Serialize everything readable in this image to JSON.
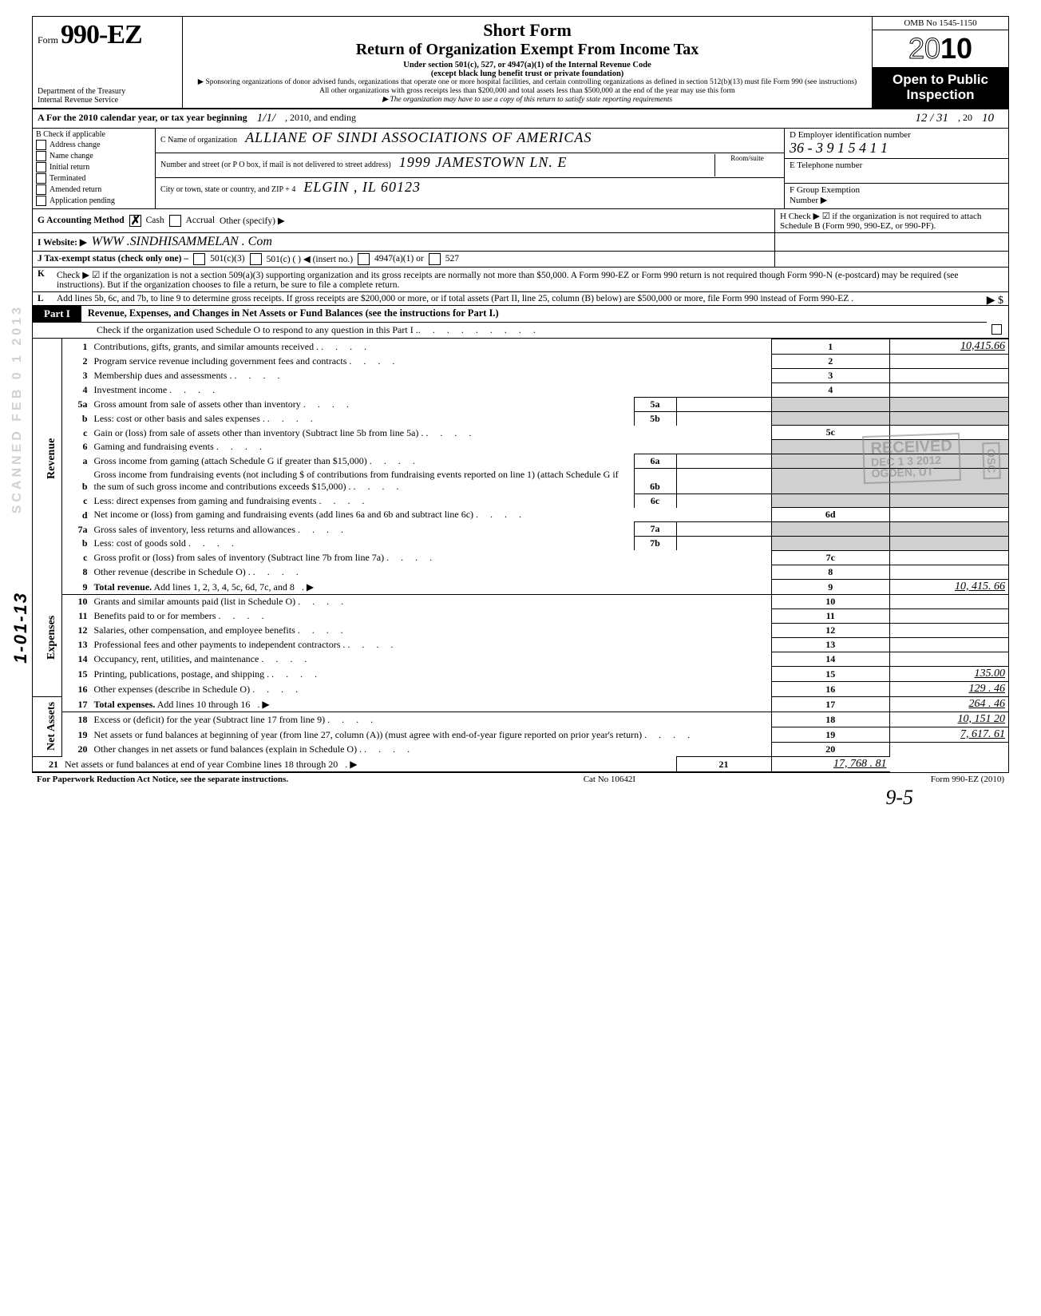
{
  "header": {
    "form_label": "Form",
    "form_number": "990-EZ",
    "dept1": "Department of the Treasury",
    "dept2": "Internal Revenue Service",
    "title1": "Short Form",
    "title2": "Return of Organization Exempt From Income Tax",
    "sub1": "Under section 501(c), 527, or 4947(a)(1) of the Internal Revenue Code",
    "sub2": "(except black lung benefit trust or private foundation)",
    "fine1": "▶ Sponsoring organizations of donor advised funds, organizations that operate one or more hospital facilities, and certain controlling organizations as defined in section 512(b)(13) must file Form 990 (see instructions)",
    "fine2": "All other organizations with gross receipts less than $200,000 and total assets less than $500,000 at the end of the year may use this form",
    "fine3": "▶ The organization may have to use a copy of this return to satisfy state reporting requirements",
    "omb": "OMB No 1545-1150",
    "year_outline": "20",
    "year_bold": "10",
    "open": "Open to Public Inspection"
  },
  "rowA": {
    "prefix": "A  For the 2010 calendar year, or tax year beginning",
    "begin": "1/1/",
    "mid": ", 2010, and ending",
    "end": "12 / 31",
    "suffix": ", 20",
    "yy": "10"
  },
  "colB": {
    "title": "B  Check if applicable",
    "items": [
      "Address change",
      "Name change",
      "Initial return",
      "Terminated",
      "Amended return",
      "Application pending"
    ]
  },
  "colC": {
    "name_lbl": "C  Name of organization",
    "name_val": "ALLIANE OF SINDI ASSOCIATIONS OF AMERICAS",
    "street_lbl": "Number and street (or P O  box, if mail is not delivered to street address)",
    "street_val": "1999 JAMESTOWN  LN.  E",
    "room_lbl": "Room/suite",
    "city_lbl": "City or town, state or country, and ZIP + 4",
    "city_val": "ELGIN , IL 60123"
  },
  "colDEF": {
    "d_lbl": "D Employer identification number",
    "d_val": "36 - 3 9 1 5 4 1 1",
    "e_lbl": "E  Telephone number",
    "f_lbl": "F  Group Exemption",
    "f_lbl2": "Number ▶"
  },
  "rowG": {
    "left_lbl": "G  Accounting Method",
    "cash": "Cash",
    "accrual": "Accrual",
    "other": "Other (specify) ▶",
    "h": "H  Check ▶ ☑ if the organization is not required to attach Schedule B (Form 990, 990-EZ, or 990-PF)."
  },
  "rowI": {
    "lbl": "I   Website: ▶",
    "val": "WWW .SINDHISAMMELAN . Com"
  },
  "rowJ": {
    "lbl": "J  Tax-exempt status (check only one) –",
    "c3": "501(c)(3)",
    "c": "501(c) (      ) ◀ (insert no.)",
    "a1": "4947(a)(1) or",
    "s527": "527"
  },
  "rowK": {
    "lbl": "K",
    "text": "Check ▶  ☑    if the organization is not a section 509(a)(3) supporting organization and its gross receipts are normally not more than $50,000.  A Form 990-EZ or Form 990 return is not required though Form 990-N (e-postcard) may be required (see instructions).  But if the organization chooses to file a return, be sure to file a complete return."
  },
  "rowL": {
    "lbl": "L",
    "text": "Add lines 5b, 6c, and 7b, to line 9 to determine gross receipts. If gross receipts are $200,000 or more, or if total assets (Part II, line 25, column (B) below) are $500,000 or more, file Form 990 instead of Form 990-EZ   .",
    "arrow": "▶  $"
  },
  "part1": {
    "tag": "Part I",
    "title": "Revenue, Expenses, and Changes in Net Assets or Fund Balances (see the instructions for Part I.)",
    "sub": "Check if the organization used Schedule O to respond to any question in this Part I ."
  },
  "sections": {
    "revenue": "Revenue",
    "expenses": "Expenses",
    "net": "Net Assets"
  },
  "lines": [
    {
      "n": "1",
      "d": "Contributions, gifts, grants, and similar amounts received .",
      "r": "1",
      "v": "10,415.66"
    },
    {
      "n": "2",
      "d": "Program service revenue including government fees and contracts",
      "r": "2",
      "v": ""
    },
    {
      "n": "3",
      "d": "Membership dues and assessments .",
      "r": "3",
      "v": ""
    },
    {
      "n": "4",
      "d": "Investment income",
      "r": "4",
      "v": ""
    },
    {
      "n": "5a",
      "d": "Gross amount from sale of assets other than inventory",
      "m": "5a",
      "shadeR": true
    },
    {
      "n": "b",
      "d": "Less: cost or other basis and sales expenses .",
      "m": "5b",
      "shadeR": true
    },
    {
      "n": "c",
      "d": "Gain or (loss) from sale of assets other than inventory (Subtract line 5b from line 5a) .",
      "r": "5c",
      "v": ""
    },
    {
      "n": "6",
      "d": "Gaming and fundraising events",
      "shadeR": true
    },
    {
      "n": "a",
      "d": "Gross income from gaming (attach Schedule G if greater than $15,000)",
      "m": "6a",
      "shadeR": true
    },
    {
      "n": "b",
      "d": "Gross income from fundraising events (not including $                         of contributions from fundraising events reported on line 1) (attach Schedule G if the sum of such gross income and contributions exceeds $15,000) .",
      "m": "6b",
      "shadeR": true
    },
    {
      "n": "c",
      "d": "Less: direct expenses from gaming and fundraising events",
      "m": "6c",
      "shadeR": true
    },
    {
      "n": "d",
      "d": "Net income or (loss) from gaming and fundraising events (add lines 6a and 6b and subtract line 6c)",
      "r": "6d",
      "v": ""
    },
    {
      "n": "7a",
      "d": "Gross sales of inventory, less returns and allowances",
      "m": "7a",
      "shadeR": true
    },
    {
      "n": "b",
      "d": "Less: cost of goods sold",
      "m": "7b",
      "shadeR": true
    },
    {
      "n": "c",
      "d": "Gross profit or (loss) from sales of inventory (Subtract line 7b from line 7a)",
      "r": "7c",
      "v": ""
    },
    {
      "n": "8",
      "d": "Other revenue (describe in Schedule O) .",
      "r": "8",
      "v": ""
    },
    {
      "n": "9",
      "d": "Total revenue. Add lines 1, 2, 3, 4, 5c, 6d, 7c, and 8",
      "r": "9",
      "v": "10, 415. 66",
      "bold": true,
      "arrow": true,
      "brk": true
    },
    {
      "n": "10",
      "d": "Grants and similar amounts paid (list in Schedule O)",
      "r": "10",
      "v": ""
    },
    {
      "n": "11",
      "d": "Benefits paid to or for members",
      "r": "11",
      "v": ""
    },
    {
      "n": "12",
      "d": "Salaries, other compensation, and employee benefits",
      "r": "12",
      "v": ""
    },
    {
      "n": "13",
      "d": "Professional fees and other payments to independent contractors .",
      "r": "13",
      "v": ""
    },
    {
      "n": "14",
      "d": "Occupancy, rent, utilities, and maintenance",
      "r": "14",
      "v": ""
    },
    {
      "n": "15",
      "d": "Printing, publications, postage, and shipping .",
      "r": "15",
      "v": "135.00"
    },
    {
      "n": "16",
      "d": "Other expenses (describe in Schedule O)",
      "r": "16",
      "v": "129 . 46"
    },
    {
      "n": "17",
      "d": "Total expenses. Add lines 10 through 16",
      "r": "17",
      "v": "264 . 46",
      "bold": true,
      "arrow": true,
      "brk": true
    },
    {
      "n": "18",
      "d": "Excess or (deficit) for the year (Subtract line 17 from line 9)",
      "r": "18",
      "v": "10, 151   20"
    },
    {
      "n": "19",
      "d": "Net assets or fund balances at beginning of year (from line 27, column (A)) (must agree with end-of-year figure reported on prior year's return)",
      "r": "19",
      "v": "7, 617. 61"
    },
    {
      "n": "20",
      "d": "Other changes in net assets or fund balances (explain in Schedule O) .",
      "r": "20",
      "v": ""
    },
    {
      "n": "21",
      "d": "Net assets or fund balances at end of year  Combine lines 18 through 20",
      "r": "21",
      "v": "17, 768 . 81",
      "arrow": true,
      "brk": true
    }
  ],
  "stamps": {
    "received": "RECEIVED",
    "date": "DEC 1 3 2012",
    "ogden": "OGDEN, UT",
    "side": "SCANNED FEB 0 1 2013",
    "osc": "OSC",
    "left_hand": "1-01-13"
  },
  "footer": {
    "left": "For Paperwork Reduction Act Notice, see the separate instructions.",
    "mid": "Cat  No  10642I",
    "right": "Form 990-EZ  (2010)",
    "hand": "9-5"
  }
}
